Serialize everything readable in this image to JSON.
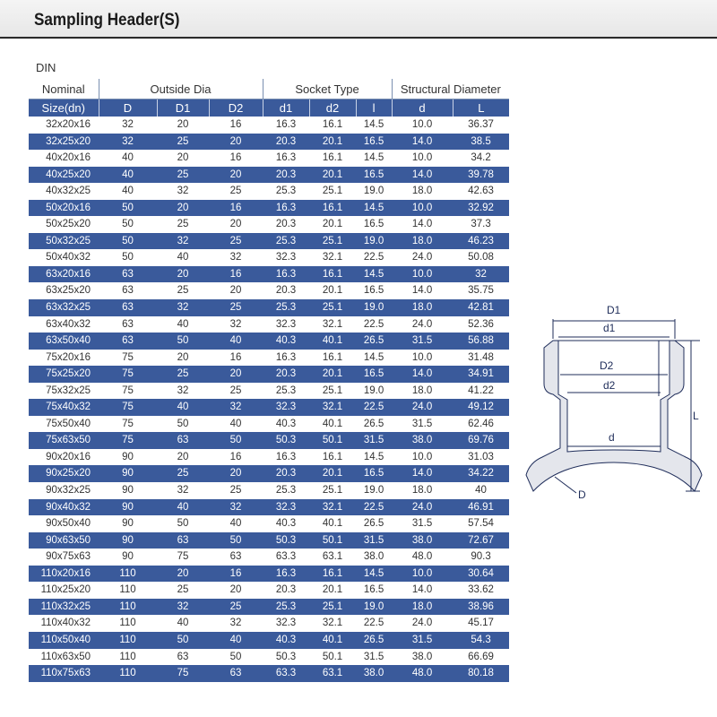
{
  "header": {
    "title": "Sampling Header(S)"
  },
  "table": {
    "standard": "DIN",
    "groups": [
      "Nominal",
      "Outside Dia",
      "Socket Type",
      "Structural Diameter"
    ],
    "columns": [
      "Size(dn)",
      "D",
      "D1",
      "D2",
      "d1",
      "d2",
      "l",
      "d",
      "L"
    ],
    "rows": [
      [
        "32x20x16",
        "32",
        "20",
        "16",
        "16.3",
        "16.1",
        "14.5",
        "10.0",
        "36.37"
      ],
      [
        "32x25x20",
        "32",
        "25",
        "20",
        "20.3",
        "20.1",
        "16.5",
        "14.0",
        "38.5"
      ],
      [
        "40x20x16",
        "40",
        "20",
        "16",
        "16.3",
        "16.1",
        "14.5",
        "10.0",
        "34.2"
      ],
      [
        "40x25x20",
        "40",
        "25",
        "20",
        "20.3",
        "20.1",
        "16.5",
        "14.0",
        "39.78"
      ],
      [
        "40x32x25",
        "40",
        "32",
        "25",
        "25.3",
        "25.1",
        "19.0",
        "18.0",
        "42.63"
      ],
      [
        "50x20x16",
        "50",
        "20",
        "16",
        "16.3",
        "16.1",
        "14.5",
        "10.0",
        "32.92"
      ],
      [
        "50x25x20",
        "50",
        "25",
        "20",
        "20.3",
        "20.1",
        "16.5",
        "14.0",
        "37.3"
      ],
      [
        "50x32x25",
        "50",
        "32",
        "25",
        "25.3",
        "25.1",
        "19.0",
        "18.0",
        "46.23"
      ],
      [
        "50x40x32",
        "50",
        "40",
        "32",
        "32.3",
        "32.1",
        "22.5",
        "24.0",
        "50.08"
      ],
      [
        "63x20x16",
        "63",
        "20",
        "16",
        "16.3",
        "16.1",
        "14.5",
        "10.0",
        "32"
      ],
      [
        "63x25x20",
        "63",
        "25",
        "20",
        "20.3",
        "20.1",
        "16.5",
        "14.0",
        "35.75"
      ],
      [
        "63x32x25",
        "63",
        "32",
        "25",
        "25.3",
        "25.1",
        "19.0",
        "18.0",
        "42.81"
      ],
      [
        "63x40x32",
        "63",
        "40",
        "32",
        "32.3",
        "32.1",
        "22.5",
        "24.0",
        "52.36"
      ],
      [
        "63x50x40",
        "63",
        "50",
        "40",
        "40.3",
        "40.1",
        "26.5",
        "31.5",
        "56.88"
      ],
      [
        "75x20x16",
        "75",
        "20",
        "16",
        "16.3",
        "16.1",
        "14.5",
        "10.0",
        "31.48"
      ],
      [
        "75x25x20",
        "75",
        "25",
        "20",
        "20.3",
        "20.1",
        "16.5",
        "14.0",
        "34.91"
      ],
      [
        "75x32x25",
        "75",
        "32",
        "25",
        "25.3",
        "25.1",
        "19.0",
        "18.0",
        "41.22"
      ],
      [
        "75x40x32",
        "75",
        "40",
        "32",
        "32.3",
        "32.1",
        "22.5",
        "24.0",
        "49.12"
      ],
      [
        "75x50x40",
        "75",
        "50",
        "40",
        "40.3",
        "40.1",
        "26.5",
        "31.5",
        "62.46"
      ],
      [
        "75x63x50",
        "75",
        "63",
        "50",
        "50.3",
        "50.1",
        "31.5",
        "38.0",
        "69.76"
      ],
      [
        "90x20x16",
        "90",
        "20",
        "16",
        "16.3",
        "16.1",
        "14.5",
        "10.0",
        "31.03"
      ],
      [
        "90x25x20",
        "90",
        "25",
        "20",
        "20.3",
        "20.1",
        "16.5",
        "14.0",
        "34.22"
      ],
      [
        "90x32x25",
        "90",
        "32",
        "25",
        "25.3",
        "25.1",
        "19.0",
        "18.0",
        "40"
      ],
      [
        "90x40x32",
        "90",
        "40",
        "32",
        "32.3",
        "32.1",
        "22.5",
        "24.0",
        "46.91"
      ],
      [
        "90x50x40",
        "90",
        "50",
        "40",
        "40.3",
        "40.1",
        "26.5",
        "31.5",
        "57.54"
      ],
      [
        "90x63x50",
        "90",
        "63",
        "50",
        "50.3",
        "50.1",
        "31.5",
        "38.0",
        "72.67"
      ],
      [
        "90x75x63",
        "90",
        "75",
        "63",
        "63.3",
        "63.1",
        "38.0",
        "48.0",
        "90.3"
      ],
      [
        "110x20x16",
        "110",
        "20",
        "16",
        "16.3",
        "16.1",
        "14.5",
        "10.0",
        "30.64"
      ],
      [
        "110x25x20",
        "110",
        "25",
        "20",
        "20.3",
        "20.1",
        "16.5",
        "14.0",
        "33.62"
      ],
      [
        "110x32x25",
        "110",
        "32",
        "25",
        "25.3",
        "25.1",
        "19.0",
        "18.0",
        "38.96"
      ],
      [
        "110x40x32",
        "110",
        "40",
        "32",
        "32.3",
        "32.1",
        "22.5",
        "24.0",
        "45.17"
      ],
      [
        "110x50x40",
        "110",
        "50",
        "40",
        "40.3",
        "40.1",
        "26.5",
        "31.5",
        "54.3"
      ],
      [
        "110x63x50",
        "110",
        "63",
        "50",
        "50.3",
        "50.1",
        "31.5",
        "38.0",
        "66.69"
      ],
      [
        "110x75x63",
        "110",
        "75",
        "63",
        "63.3",
        "63.1",
        "38.0",
        "48.0",
        "80.18"
      ]
    ]
  },
  "diagram": {
    "labels": {
      "D1": "D1",
      "d1": "d1",
      "D2": "D2",
      "d2": "d2",
      "d": "d",
      "L": "L",
      "D": "D"
    }
  },
  "colors": {
    "row_dark": "#3a5a9b",
    "row_light": "#ffffff",
    "outline": "#1f2d5a"
  }
}
